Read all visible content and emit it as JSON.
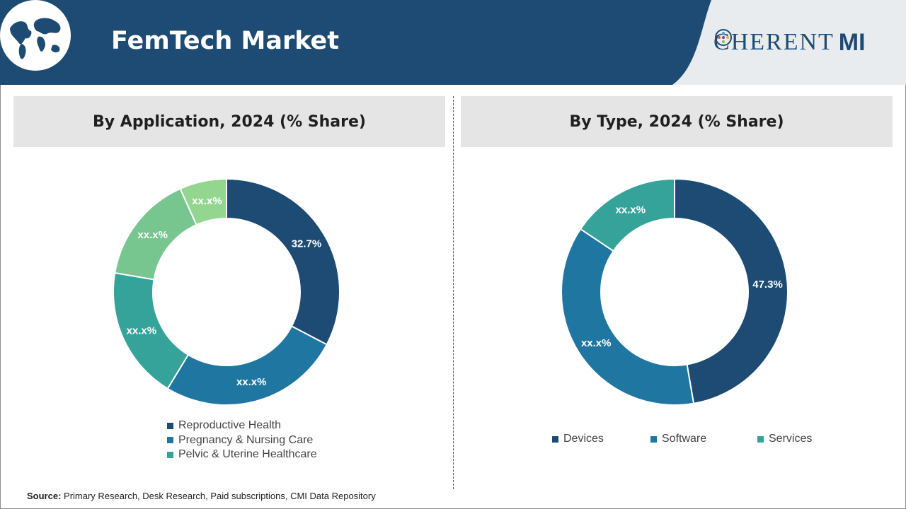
{
  "header": {
    "title": "FemTech Market",
    "logo_text_main": "C",
    "logo_text_rest": "HERENT",
    "logo_text_mi": "MI",
    "colors": {
      "banner": "#1d4b73",
      "banner_edge": "#e8ecef"
    }
  },
  "panels": {
    "left_title": "By Application, 2024 (% Share)",
    "right_title": "By Type, 2024 (% Share)"
  },
  "chart_data": [
    {
      "type": "pie",
      "title": "By Application, 2024 (% Share)",
      "donut": true,
      "categories": [
        "Reproductive Health",
        "Pregnancy & Nursing Care",
        "Pelvic & Uterine Healthcare",
        "",
        ""
      ],
      "values": [
        32.7,
        26.0,
        19.0,
        15.6,
        6.7
      ],
      "labels": [
        "32.7%",
        "xx.x%",
        "xx.x%",
        "xx.x%",
        "xx.x%"
      ],
      "colors": [
        "#1d4b73",
        "#1f77a1",
        "#36a39b",
        "#77c68f",
        "#93d690"
      ],
      "legend": [
        "Reproductive Health",
        "Pregnancy & Nursing Care",
        "Pelvic & Uterine Healthcare"
      ],
      "legend_colors": [
        "#1d4b73",
        "#1f77a1",
        "#36a39b"
      ]
    },
    {
      "type": "pie",
      "title": "By Type, 2024 (% Share)",
      "donut": true,
      "categories": [
        "Devices",
        "Software",
        "Services"
      ],
      "values": [
        47.3,
        37.1,
        15.6
      ],
      "labels": [
        "47.3%",
        "xx.x%",
        "xx.x%"
      ],
      "colors": [
        "#1d4b73",
        "#1f77a1",
        "#36a39b"
      ],
      "legend": [
        "Devices",
        "Software",
        "Services"
      ],
      "legend_colors": [
        "#1d4b73",
        "#1f77a1",
        "#36a39b"
      ]
    }
  ],
  "source": {
    "label": "Source:",
    "text": " Primary Research, Desk Research, Paid subscriptions, CMI Data Repository"
  }
}
